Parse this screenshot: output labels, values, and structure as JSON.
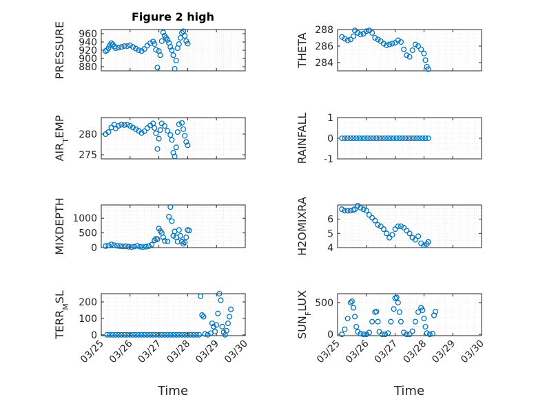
{
  "figure": {
    "title": "Figure 2 high",
    "xlabel": "Time"
  },
  "colors": {
    "marker": "#0072bd",
    "axis": "#262626",
    "grid": "#dcdcdc"
  },
  "chart_data": [
    {
      "type": "scatter",
      "ylabel_main": "PRESSURE",
      "ylabel_sub": "",
      "xlim": [
        0,
        5
      ],
      "ylim": [
        870,
        970
      ],
      "yticks": [
        880,
        900,
        920,
        940,
        960
      ],
      "ytick_labels": [
        "880",
        "900",
        "920",
        "940",
        "960"
      ],
      "xticks": [],
      "xtick_labels": [],
      "points": [
        [
          0.15,
          918
        ],
        [
          0.2,
          920
        ],
        [
          0.25,
          925
        ],
        [
          0.3,
          932
        ],
        [
          0.35,
          937
        ],
        [
          0.4,
          934
        ],
        [
          0.45,
          929
        ],
        [
          0.5,
          925
        ],
        [
          0.6,
          926
        ],
        [
          0.7,
          928
        ],
        [
          0.8,
          930
        ],
        [
          0.9,
          930
        ],
        [
          1.0,
          932
        ],
        [
          1.1,
          928
        ],
        [
          1.2,
          924
        ],
        [
          1.3,
          920
        ],
        [
          1.4,
          918
        ],
        [
          1.5,
          923
        ],
        [
          1.6,
          931
        ],
        [
          1.7,
          937
        ],
        [
          1.8,
          941
        ],
        [
          1.85,
          935
        ],
        [
          1.9,
          921
        ],
        [
          1.95,
          878
        ],
        [
          2.0,
          918
        ],
        [
          2.05,
          908
        ],
        [
          2.1,
          942
        ],
        [
          2.15,
          963
        ],
        [
          2.2,
          955
        ],
        [
          2.25,
          950
        ],
        [
          2.3,
          945
        ],
        [
          2.35,
          938
        ],
        [
          2.4,
          928
        ],
        [
          2.45,
          920
        ],
        [
          2.5,
          908
        ],
        [
          2.55,
          875
        ],
        [
          2.6,
          895
        ],
        [
          2.65,
          925
        ],
        [
          2.7,
          935
        ],
        [
          2.75,
          950
        ],
        [
          2.8,
          962
        ],
        [
          2.85,
          966
        ],
        [
          2.9,
          955
        ],
        [
          2.95,
          942
        ],
        [
          3.0,
          936
        ]
      ]
    },
    {
      "type": "scatter",
      "ylabel_main": "THETA",
      "ylabel_sub": "",
      "xlim": [
        0,
        5
      ],
      "ylim": [
        283,
        288
      ],
      "yticks": [
        284,
        286,
        288
      ],
      "ytick_labels": [
        "284",
        "286",
        "288"
      ],
      "xticks": [],
      "xtick_labels": [],
      "points": [
        [
          0.15,
          287.1
        ],
        [
          0.25,
          286.9
        ],
        [
          0.35,
          286.7
        ],
        [
          0.45,
          286.8
        ],
        [
          0.55,
          287.2
        ],
        [
          0.6,
          287.9
        ],
        [
          0.7,
          287.6
        ],
        [
          0.8,
          287.4
        ],
        [
          0.9,
          287.5
        ],
        [
          1.0,
          287.8
        ],
        [
          1.1,
          287.9
        ],
        [
          1.2,
          287.6
        ],
        [
          1.3,
          287.0
        ],
        [
          1.4,
          286.8
        ],
        [
          1.5,
          286.6
        ],
        [
          1.6,
          286.3
        ],
        [
          1.7,
          286.1
        ],
        [
          1.8,
          286.2
        ],
        [
          1.9,
          286.3
        ],
        [
          2.0,
          286.4
        ],
        [
          2.1,
          286.7
        ],
        [
          2.2,
          286.5
        ],
        [
          2.3,
          285.6
        ],
        [
          2.4,
          284.9
        ],
        [
          2.5,
          284.7
        ],
        [
          2.6,
          285.5
        ],
        [
          2.7,
          286.2
        ],
        [
          2.8,
          286.0
        ],
        [
          2.9,
          285.6
        ],
        [
          3.0,
          285.1
        ],
        [
          3.05,
          284.3
        ],
        [
          3.1,
          283.5
        ],
        [
          3.15,
          283.2
        ]
      ]
    },
    {
      "type": "scatter",
      "ylabel_main": "AIR",
      "ylabel_sub": "T",
      "ylabel_rest": "EMP",
      "xlim": [
        0,
        5
      ],
      "ylim": [
        274,
        284
      ],
      "yticks": [
        275,
        280
      ],
      "ytick_labels": [
        "275",
        "280"
      ],
      "xticks": [],
      "xtick_labels": [],
      "points": [
        [
          0.15,
          280.0
        ],
        [
          0.25,
          280.5
        ],
        [
          0.35,
          281.6
        ],
        [
          0.45,
          282.3
        ],
        [
          0.5,
          281.4
        ],
        [
          0.6,
          282.0
        ],
        [
          0.7,
          282.3
        ],
        [
          0.8,
          282.2
        ],
        [
          0.9,
          282.3
        ],
        [
          1.0,
          282.0
        ],
        [
          1.1,
          281.6
        ],
        [
          1.2,
          281.2
        ],
        [
          1.3,
          280.8
        ],
        [
          1.4,
          280.3
        ],
        [
          1.5,
          280.7
        ],
        [
          1.6,
          281.5
        ],
        [
          1.7,
          282.1
        ],
        [
          1.8,
          282.6
        ],
        [
          1.85,
          281.5
        ],
        [
          1.9,
          280.2
        ],
        [
          1.95,
          276.4
        ],
        [
          2.0,
          278.9
        ],
        [
          2.05,
          281.0
        ],
        [
          2.1,
          282.6
        ],
        [
          2.2,
          282.0
        ],
        [
          2.3,
          280.8
        ],
        [
          2.4,
          279.8
        ],
        [
          2.45,
          278.6
        ],
        [
          2.5,
          275.5
        ],
        [
          2.55,
          274.6
        ],
        [
          2.6,
          276.8
        ],
        [
          2.65,
          280.5
        ],
        [
          2.7,
          282.4
        ],
        [
          2.8,
          282.7
        ],
        [
          2.85,
          281.2
        ],
        [
          2.9,
          279.6
        ],
        [
          2.95,
          278.1
        ],
        [
          3.0,
          277.3
        ]
      ]
    },
    {
      "type": "scatter",
      "ylabel_main": "RAINFALL",
      "ylabel_sub": "",
      "xlim": [
        0,
        5
      ],
      "ylim": [
        -1,
        1
      ],
      "yticks": [
        -1,
        0,
        1
      ],
      "ytick_labels": [
        "-1",
        "0",
        "1"
      ],
      "xticks": [],
      "xtick_labels": [],
      "points": [
        [
          0.15,
          0
        ],
        [
          0.25,
          0
        ],
        [
          0.35,
          0
        ],
        [
          0.45,
          0
        ],
        [
          0.55,
          0
        ],
        [
          0.65,
          0
        ],
        [
          0.75,
          0
        ],
        [
          0.85,
          0
        ],
        [
          0.95,
          0
        ],
        [
          1.05,
          0
        ],
        [
          1.15,
          0
        ],
        [
          1.25,
          0
        ],
        [
          1.35,
          0
        ],
        [
          1.45,
          0
        ],
        [
          1.55,
          0
        ],
        [
          1.65,
          0
        ],
        [
          1.75,
          0
        ],
        [
          1.85,
          0
        ],
        [
          1.95,
          0
        ],
        [
          2.05,
          0
        ],
        [
          2.15,
          0
        ],
        [
          2.25,
          0
        ],
        [
          2.35,
          0
        ],
        [
          2.45,
          0
        ],
        [
          2.55,
          0
        ],
        [
          2.65,
          0
        ],
        [
          2.75,
          0
        ],
        [
          2.85,
          0
        ],
        [
          2.95,
          0
        ],
        [
          3.05,
          0
        ],
        [
          3.15,
          0
        ]
      ]
    },
    {
      "type": "scatter",
      "ylabel_main": "MIXDEPTH",
      "ylabel_sub": "",
      "xlim": [
        0,
        5
      ],
      "ylim": [
        0,
        1450
      ],
      "yticks": [
        0,
        500,
        1000
      ],
      "ytick_labels": [
        "0",
        "500",
        "1000"
      ],
      "xticks": [],
      "xtick_labels": [],
      "points": [
        [
          0.15,
          50
        ],
        [
          0.25,
          70
        ],
        [
          0.35,
          110
        ],
        [
          0.45,
          80
        ],
        [
          0.55,
          60
        ],
        [
          0.65,
          50
        ],
        [
          0.75,
          40
        ],
        [
          0.85,
          45
        ],
        [
          0.95,
          30
        ],
        [
          1.05,
          20
        ],
        [
          1.15,
          35
        ],
        [
          1.25,
          60
        ],
        [
          1.35,
          30
        ],
        [
          1.45,
          20
        ],
        [
          1.55,
          30
        ],
        [
          1.65,
          50
        ],
        [
          1.75,
          100
        ],
        [
          1.85,
          250
        ],
        [
          1.9,
          300
        ],
        [
          1.95,
          280
        ],
        [
          2.0,
          650
        ],
        [
          2.05,
          560
        ],
        [
          2.1,
          500
        ],
        [
          2.15,
          350
        ],
        [
          2.2,
          230
        ],
        [
          2.3,
          210
        ],
        [
          2.35,
          1050
        ],
        [
          2.4,
          1380
        ],
        [
          2.45,
          900
        ],
        [
          2.5,
          400
        ],
        [
          2.55,
          550
        ],
        [
          2.6,
          350
        ],
        [
          2.65,
          200
        ],
        [
          2.7,
          600
        ],
        [
          2.75,
          400
        ],
        [
          2.8,
          200
        ],
        [
          2.85,
          130
        ],
        [
          2.9,
          180
        ],
        [
          2.95,
          350
        ],
        [
          3.0,
          600
        ],
        [
          3.05,
          580
        ]
      ]
    },
    {
      "type": "scatter",
      "ylabel_main": "H2OMIXRA",
      "ylabel_sub": "",
      "xlim": [
        0,
        5
      ],
      "ylim": [
        4,
        7
      ],
      "yticks": [
        4,
        5,
        6
      ],
      "ytick_labels": [
        "4",
        "5",
        "6"
      ],
      "xticks": [],
      "xtick_labels": [],
      "points": [
        [
          0.15,
          6.7
        ],
        [
          0.25,
          6.6
        ],
        [
          0.35,
          6.6
        ],
        [
          0.45,
          6.6
        ],
        [
          0.55,
          6.65
        ],
        [
          0.6,
          6.7
        ],
        [
          0.7,
          6.95
        ],
        [
          0.8,
          6.8
        ],
        [
          0.9,
          6.7
        ],
        [
          1.0,
          6.6
        ],
        [
          1.1,
          6.3
        ],
        [
          1.2,
          6.1
        ],
        [
          1.3,
          5.9
        ],
        [
          1.4,
          5.6
        ],
        [
          1.5,
          5.5
        ],
        [
          1.6,
          5.3
        ],
        [
          1.7,
          5.0
        ],
        [
          1.8,
          4.7
        ],
        [
          1.9,
          4.9
        ],
        [
          2.0,
          5.3
        ],
        [
          2.1,
          5.5
        ],
        [
          2.2,
          5.5
        ],
        [
          2.3,
          5.4
        ],
        [
          2.4,
          5.2
        ],
        [
          2.5,
          5.0
        ],
        [
          2.6,
          4.7
        ],
        [
          2.7,
          4.55
        ],
        [
          2.8,
          4.8
        ],
        [
          2.9,
          4.3
        ],
        [
          3.0,
          4.15
        ],
        [
          3.1,
          4.25
        ],
        [
          3.15,
          4.4
        ]
      ]
    },
    {
      "type": "scatter",
      "ylabel_main": "TERR",
      "ylabel_sub": "M",
      "ylabel_rest": "SL",
      "xlim": [
        0,
        5
      ],
      "ylim": [
        -5,
        250
      ],
      "yticks": [
        0,
        100,
        200
      ],
      "ytick_labels": [
        "0",
        "100",
        "200"
      ],
      "xticks": [
        0,
        1,
        2,
        3,
        4,
        5
      ],
      "xtick_labels": [
        "03/25",
        "03/26",
        "03/27",
        "03/28",
        "03/29",
        "03/30"
      ],
      "points": [
        [
          0.2,
          0
        ],
        [
          0.3,
          0
        ],
        [
          0.4,
          0
        ],
        [
          0.5,
          0
        ],
        [
          0.6,
          0
        ],
        [
          0.7,
          0
        ],
        [
          0.8,
          0
        ],
        [
          0.9,
          0
        ],
        [
          1.0,
          0
        ],
        [
          1.1,
          0
        ],
        [
          1.2,
          0
        ],
        [
          1.3,
          0
        ],
        [
          1.4,
          0
        ],
        [
          1.5,
          0
        ],
        [
          1.6,
          0
        ],
        [
          1.7,
          0
        ],
        [
          1.8,
          0
        ],
        [
          1.9,
          0
        ],
        [
          2.0,
          0
        ],
        [
          2.1,
          0
        ],
        [
          2.2,
          0
        ],
        [
          2.3,
          0
        ],
        [
          2.4,
          0
        ],
        [
          2.5,
          0
        ],
        [
          2.6,
          0
        ],
        [
          2.7,
          0
        ],
        [
          2.8,
          0
        ],
        [
          2.9,
          0
        ],
        [
          3.0,
          0
        ],
        [
          3.1,
          0
        ],
        [
          3.2,
          0
        ],
        [
          3.3,
          0
        ],
        [
          3.4,
          0
        ],
        [
          3.45,
          235
        ],
        [
          3.5,
          120
        ],
        [
          3.55,
          110
        ],
        [
          3.6,
          5
        ],
        [
          3.7,
          0
        ],
        [
          3.8,
          10
        ],
        [
          3.85,
          70
        ],
        [
          3.9,
          50
        ],
        [
          3.95,
          20
        ],
        [
          4.0,
          60
        ],
        [
          4.05,
          130
        ],
        [
          4.1,
          250
        ],
        [
          4.15,
          210
        ],
        [
          4.2,
          50
        ],
        [
          4.25,
          15
        ],
        [
          4.3,
          0
        ],
        [
          4.35,
          25
        ],
        [
          4.4,
          70
        ],
        [
          4.45,
          110
        ],
        [
          4.5,
          155
        ]
      ]
    },
    {
      "type": "scatter",
      "ylabel_main": "SUN",
      "ylabel_sub": "F",
      "ylabel_rest": "LUX",
      "xlim": [
        0,
        5
      ],
      "ylim": [
        -20,
        640
      ],
      "yticks": [
        0,
        500
      ],
      "ytick_labels": [
        "0",
        "500"
      ],
      "xticks": [
        0,
        1,
        2,
        3,
        4,
        5
      ],
      "xtick_labels": [
        "03/25",
        "03/26",
        "03/27",
        "03/28",
        "03/29",
        "03/30"
      ],
      "points": [
        [
          0.15,
          0
        ],
        [
          0.25,
          80
        ],
        [
          0.35,
          250
        ],
        [
          0.45,
          500
        ],
        [
          0.5,
          520
        ],
        [
          0.55,
          420
        ],
        [
          0.6,
          280
        ],
        [
          0.65,
          120
        ],
        [
          0.7,
          40
        ],
        [
          0.8,
          10
        ],
        [
          0.9,
          0
        ],
        [
          1.0,
          0
        ],
        [
          1.1,
          30
        ],
        [
          1.2,
          200
        ],
        [
          1.3,
          350
        ],
        [
          1.35,
          360
        ],
        [
          1.4,
          200
        ],
        [
          1.45,
          40
        ],
        [
          1.55,
          0
        ],
        [
          1.65,
          0
        ],
        [
          1.75,
          20
        ],
        [
          1.85,
          200
        ],
        [
          1.95,
          400
        ],
        [
          2.0,
          570
        ],
        [
          2.05,
          580
        ],
        [
          2.1,
          500
        ],
        [
          2.15,
          350
        ],
        [
          2.2,
          200
        ],
        [
          2.3,
          30
        ],
        [
          2.4,
          0
        ],
        [
          2.5,
          0
        ],
        [
          2.6,
          50
        ],
        [
          2.7,
          200
        ],
        [
          2.8,
          350
        ],
        [
          2.9,
          420
        ],
        [
          2.95,
          380
        ],
        [
          3.0,
          250
        ],
        [
          3.05,
          120
        ],
        [
          3.1,
          20
        ],
        [
          3.2,
          0
        ],
        [
          3.3,
          10
        ],
        [
          3.35,
          300
        ],
        [
          3.4,
          360
        ]
      ]
    }
  ]
}
